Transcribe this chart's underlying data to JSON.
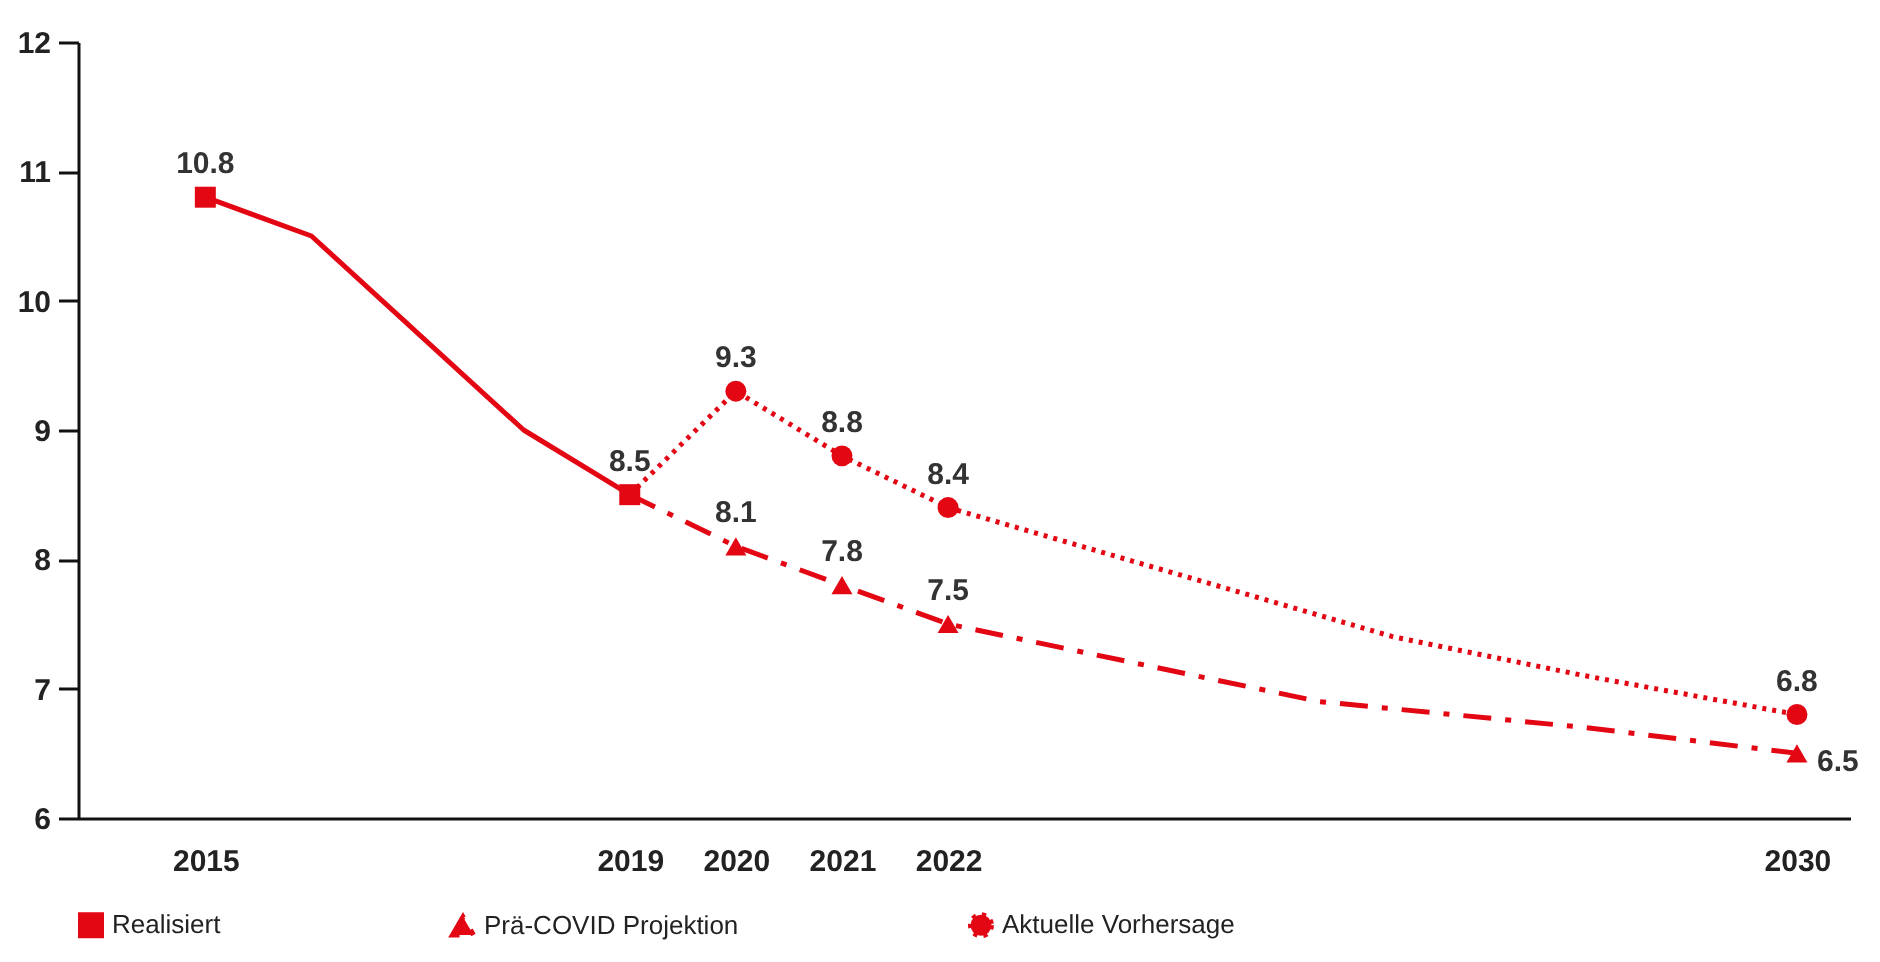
{
  "chart_data": {
    "type": "line",
    "xlim": [
      2013.8,
      2030.5
    ],
    "xticks": [
      2015,
      2019,
      2020,
      2021,
      2022,
      2030
    ],
    "ylim": [
      6,
      12
    ],
    "yticks": [
      6,
      7,
      8,
      9,
      10,
      11,
      12
    ],
    "grid": false,
    "legend": "bottom",
    "series": [
      {
        "name": "Realisiert",
        "color": "#e30613",
        "line_style": "solid",
        "marker": "square",
        "x": [
          2015,
          2016,
          2018,
          2019
        ],
        "values": [
          10.8,
          10.5,
          9.0,
          8.5
        ],
        "value_labels": [
          "10.8",
          null,
          null,
          "8.5"
        ]
      },
      {
        "name": "Prä-COVID Projektion",
        "color": "#e30613",
        "line_style": "dashed",
        "marker": "triangle",
        "x": [
          2019,
          2020,
          2021,
          2022,
          2025.5,
          2028,
          2030
        ],
        "values": [
          8.5,
          8.1,
          7.8,
          7.5,
          6.9,
          6.7,
          6.5
        ],
        "value_labels": [
          null,
          "8.1",
          "7.8",
          "7.5",
          null,
          null,
          "6.5"
        ]
      },
      {
        "name": "Aktuelle Vorhersage",
        "color": "#e30613",
        "line_style": "dotted",
        "marker": "circle",
        "x": [
          2019,
          2020,
          2021,
          2022,
          2026.2,
          2028,
          2030
        ],
        "values": [
          8.5,
          9.3,
          8.8,
          8.4,
          7.4,
          7.1,
          6.8
        ],
        "value_labels": [
          null,
          "9.3",
          "8.8",
          "8.4",
          null,
          null,
          "6.8"
        ]
      }
    ]
  }
}
